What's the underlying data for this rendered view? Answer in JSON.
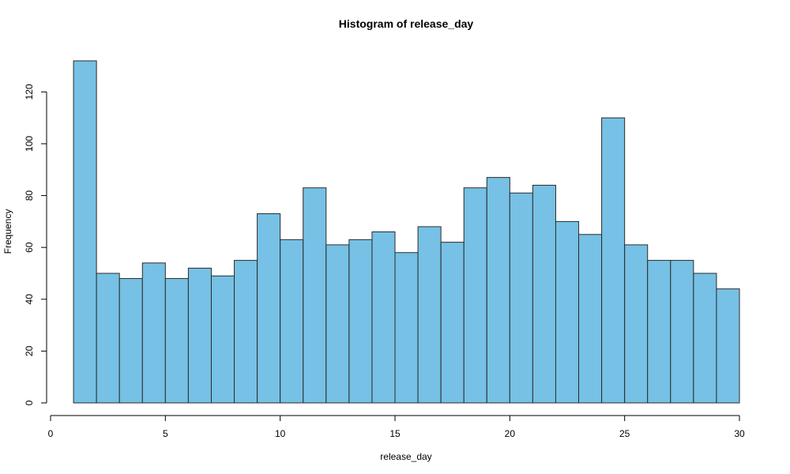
{
  "chart_data": {
    "type": "bar",
    "title": "Histogram of release_day",
    "xlabel": "release_day",
    "ylabel": "Frequency",
    "xlim": [
      0,
      30
    ],
    "ylim": [
      0,
      132
    ],
    "x_ticks": [
      0,
      5,
      10,
      15,
      20,
      25,
      30
    ],
    "y_ticks": [
      0,
      20,
      40,
      60,
      80,
      100,
      120
    ],
    "bins": [
      {
        "start": 1,
        "end": 2,
        "value": 132
      },
      {
        "start": 2,
        "end": 3,
        "value": 50
      },
      {
        "start": 3,
        "end": 4,
        "value": 48
      },
      {
        "start": 4,
        "end": 5,
        "value": 54
      },
      {
        "start": 5,
        "end": 6,
        "value": 48
      },
      {
        "start": 6,
        "end": 7,
        "value": 52
      },
      {
        "start": 7,
        "end": 8,
        "value": 49
      },
      {
        "start": 8,
        "end": 9,
        "value": 55
      },
      {
        "start": 9,
        "end": 10,
        "value": 73
      },
      {
        "start": 10,
        "end": 11,
        "value": 63
      },
      {
        "start": 11,
        "end": 12,
        "value": 83
      },
      {
        "start": 12,
        "end": 13,
        "value": 61
      },
      {
        "start": 13,
        "end": 14,
        "value": 63
      },
      {
        "start": 14,
        "end": 15,
        "value": 66
      },
      {
        "start": 15,
        "end": 16,
        "value": 58
      },
      {
        "start": 16,
        "end": 17,
        "value": 68
      },
      {
        "start": 17,
        "end": 18,
        "value": 62
      },
      {
        "start": 18,
        "end": 19,
        "value": 83
      },
      {
        "start": 19,
        "end": 20,
        "value": 87
      },
      {
        "start": 20,
        "end": 21,
        "value": 81
      },
      {
        "start": 21,
        "end": 22,
        "value": 84
      },
      {
        "start": 22,
        "end": 23,
        "value": 70
      },
      {
        "start": 23,
        "end": 24,
        "value": 65
      },
      {
        "start": 24,
        "end": 25,
        "value": 110
      },
      {
        "start": 25,
        "end": 26,
        "value": 61
      },
      {
        "start": 26,
        "end": 27,
        "value": 55
      },
      {
        "start": 27,
        "end": 28,
        "value": 55
      },
      {
        "start": 28,
        "end": 29,
        "value": 50
      },
      {
        "start": 29,
        "end": 30,
        "value": 44
      }
    ],
    "bar_color": "#76c1e5",
    "bar_edge_color": "#2b2b2b",
    "grid": false,
    "legend": "none"
  }
}
